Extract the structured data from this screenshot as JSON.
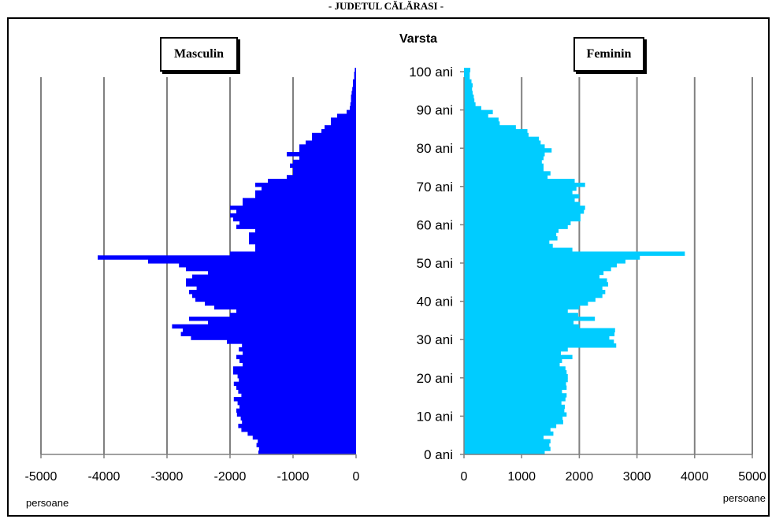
{
  "title": "- JUDEȚUL  CĂLĂRAȘI -",
  "chart_data": {
    "type": "bar",
    "orientation": "horizontal",
    "ylabel": "Varsta",
    "unit_label": "persoane",
    "y_tick_labels": [
      "0 ani",
      "10 ani",
      "20 ani",
      "30 ani",
      "40 ani",
      "50 ani",
      "60 ani",
      "70 ani",
      "80 ani",
      "90 ani",
      "100 ani"
    ],
    "y_range": [
      0,
      100
    ],
    "grid": true,
    "panels": [
      {
        "name": "Masculin",
        "color": "#0000ff",
        "xlim": [
          -5000,
          0
        ],
        "x_ticks": [
          -5000,
          -4000,
          -3000,
          -2000,
          -1000,
          0
        ],
        "x_tick_labels": [
          "-5000",
          "-4000",
          "-3000",
          "-2000",
          "-1000",
          "0"
        ],
        "ages": [
          0,
          1,
          2,
          3,
          4,
          5,
          6,
          7,
          8,
          9,
          10,
          11,
          12,
          13,
          14,
          15,
          16,
          17,
          18,
          19,
          20,
          21,
          22,
          23,
          24,
          25,
          26,
          27,
          28,
          29,
          30,
          31,
          32,
          33,
          34,
          35,
          36,
          37,
          38,
          39,
          40,
          41,
          42,
          43,
          44,
          45,
          46,
          47,
          48,
          49,
          50,
          51,
          52,
          53,
          54,
          55,
          56,
          57,
          58,
          59,
          60,
          61,
          62,
          63,
          64,
          65,
          66,
          67,
          68,
          69,
          70,
          71,
          72,
          73,
          74,
          75,
          76,
          77,
          78,
          79,
          80,
          81,
          82,
          83,
          84,
          85,
          86,
          87,
          88,
          89,
          90,
          91,
          92,
          93,
          94,
          95,
          96,
          97,
          98,
          99,
          100
        ],
        "values": [
          -1550,
          -1540,
          -1580,
          -1560,
          -1640,
          -1720,
          -1820,
          -1870,
          -1810,
          -1830,
          -1890,
          -1900,
          -1850,
          -1880,
          -1940,
          -1820,
          -1870,
          -1900,
          -1940,
          -1860,
          -1880,
          -1950,
          -1950,
          -1800,
          -1850,
          -1900,
          -1800,
          -1860,
          -1810,
          -2050,
          -2620,
          -2780,
          -2750,
          -2920,
          -2350,
          -2650,
          -2000,
          -1900,
          -2250,
          -2400,
          -2550,
          -2600,
          -2650,
          -2530,
          -2700,
          -2700,
          -2600,
          -2350,
          -2700,
          -2810,
          -3300,
          -4100,
          -2000,
          -1600,
          -1600,
          -1700,
          -1700,
          -1700,
          -1600,
          -1900,
          -1850,
          -1950,
          -2000,
          -1900,
          -2000,
          -1800,
          -1800,
          -1600,
          -1600,
          -1500,
          -1600,
          -1400,
          -1100,
          -1000,
          -1000,
          -1050,
          -1000,
          -900,
          -1100,
          -900,
          -900,
          -800,
          -700,
          -700,
          -550,
          -500,
          -400,
          -400,
          -300,
          -150,
          -100,
          -90,
          -80,
          -80,
          -70,
          -60,
          -50,
          -50,
          -30,
          -30,
          -20
        ]
      },
      {
        "name": "Feminin",
        "color": "#00ccff",
        "xlim": [
          0,
          5000
        ],
        "x_ticks": [
          0,
          1000,
          2000,
          3000,
          4000,
          5000
        ],
        "x_tick_labels": [
          "0",
          "1000",
          "2000",
          "3000",
          "4000",
          "5000"
        ],
        "ages": [
          0,
          1,
          2,
          3,
          4,
          5,
          6,
          7,
          8,
          9,
          10,
          11,
          12,
          13,
          14,
          15,
          16,
          17,
          18,
          19,
          20,
          21,
          22,
          23,
          24,
          25,
          26,
          27,
          28,
          29,
          30,
          31,
          32,
          33,
          34,
          35,
          36,
          37,
          38,
          39,
          40,
          41,
          42,
          43,
          44,
          45,
          46,
          47,
          48,
          49,
          50,
          51,
          52,
          53,
          54,
          55,
          56,
          57,
          58,
          59,
          60,
          61,
          62,
          63,
          64,
          65,
          66,
          67,
          68,
          69,
          70,
          71,
          72,
          73,
          74,
          75,
          76,
          77,
          78,
          79,
          80,
          81,
          82,
          83,
          84,
          85,
          86,
          87,
          88,
          89,
          90,
          91,
          92,
          93,
          94,
          95,
          96,
          97,
          98,
          99,
          100
        ],
        "values": [
          1400,
          1500,
          1480,
          1500,
          1380,
          1550,
          1500,
          1600,
          1720,
          1710,
          1780,
          1740,
          1750,
          1690,
          1760,
          1780,
          1700,
          1780,
          1770,
          1800,
          1800,
          1780,
          1760,
          1660,
          1700,
          1880,
          1680,
          1800,
          2640,
          2600,
          2520,
          2610,
          2620,
          2000,
          1900,
          2270,
          1980,
          1800,
          2000,
          2150,
          2280,
          2400,
          2450,
          2400,
          2500,
          2480,
          2350,
          2420,
          2550,
          2650,
          2800,
          3050,
          3830,
          1880,
          1540,
          1480,
          1620,
          1600,
          1640,
          1800,
          1850,
          2020,
          2020,
          2080,
          2100,
          2010,
          1920,
          2000,
          1880,
          1950,
          2100,
          1920,
          1450,
          1500,
          1380,
          1380,
          1350,
          1380,
          1400,
          1520,
          1400,
          1330,
          1300,
          1120,
          1100,
          900,
          620,
          600,
          420,
          500,
          300,
          200,
          180,
          170,
          150,
          140,
          150,
          130,
          100,
          100,
          110
        ]
      }
    ]
  }
}
